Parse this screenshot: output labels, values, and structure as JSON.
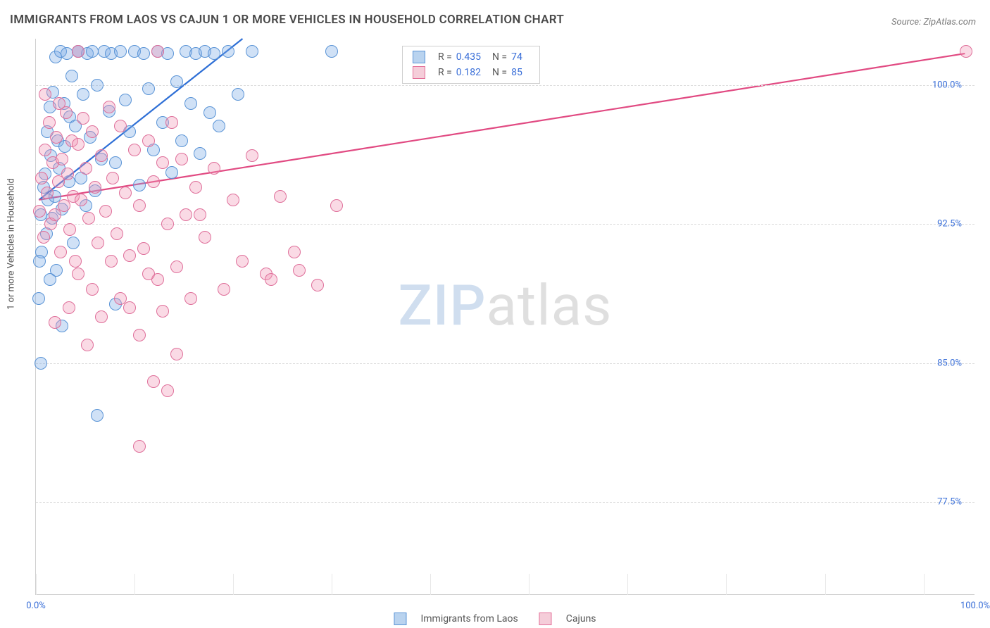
{
  "title": "IMMIGRANTS FROM LAOS VS CAJUN 1 OR MORE VEHICLES IN HOUSEHOLD CORRELATION CHART",
  "source_label": "Source:",
  "source_name": "ZipAtlas.com",
  "ylabel": "1 or more Vehicles in Household",
  "watermark_a": "ZIP",
  "watermark_b": "atlas",
  "chart": {
    "type": "scatter",
    "background_color": "#ffffff",
    "grid_color": "#dcdcdc",
    "axis_color": "#d0d0d0",
    "tick_label_color": "#3a6fd8",
    "tick_fontsize": 13,
    "xlim": [
      0,
      100
    ],
    "ylim": [
      72.5,
      102.5
    ],
    "yticks": [
      77.5,
      85.0,
      92.5,
      100.0
    ],
    "ytick_labels": [
      "77.5%",
      "85.0%",
      "92.5%",
      "100.0%"
    ],
    "xticks": [
      0,
      100
    ],
    "xtick_labels": [
      "0.0%",
      "100.0%"
    ],
    "x_minor_ticks": [
      0,
      10.5,
      21,
      31.5,
      42,
      52.5,
      63,
      73.5,
      84,
      94.5
    ],
    "point_radius": 9,
    "point_stroke_width": 1.2,
    "trend_line_width": 2.2
  },
  "series": [
    {
      "key": "laos",
      "label": "Immigrants from Laos",
      "fill": "rgba(120,170,230,0.35)",
      "stroke": "#5a94d6",
      "swatch_fill": "#b9d3ef",
      "swatch_stroke": "#5a94d6",
      "trend_color": "#2e6fd6",
      "R": "0.435",
      "N": "74",
      "trend": {
        "x1": 0.3,
        "y1": 93.8,
        "x2": 22.0,
        "y2": 102.5
      },
      "points": [
        [
          0.3,
          88.5
        ],
        [
          0.5,
          93.0
        ],
        [
          0.6,
          91.0
        ],
        [
          0.8,
          94.5
        ],
        [
          1.0,
          95.2
        ],
        [
          1.1,
          92.0
        ],
        [
          1.2,
          97.5
        ],
        [
          1.3,
          93.8
        ],
        [
          1.5,
          98.8
        ],
        [
          1.6,
          96.2
        ],
        [
          1.7,
          92.8
        ],
        [
          1.8,
          99.6
        ],
        [
          2.0,
          94.0
        ],
        [
          2.1,
          101.5
        ],
        [
          2.2,
          90.0
        ],
        [
          2.3,
          97.0
        ],
        [
          2.5,
          95.5
        ],
        [
          2.6,
          101.8
        ],
        [
          2.8,
          93.3
        ],
        [
          3.0,
          99.0
        ],
        [
          3.1,
          96.7
        ],
        [
          3.3,
          101.7
        ],
        [
          3.5,
          94.8
        ],
        [
          3.6,
          98.3
        ],
        [
          3.8,
          100.5
        ],
        [
          4.0,
          91.5
        ],
        [
          4.2,
          97.8
        ],
        [
          0.5,
          85.0
        ],
        [
          4.5,
          101.8
        ],
        [
          4.8,
          95.0
        ],
        [
          5.0,
          99.5
        ],
        [
          5.3,
          93.5
        ],
        [
          5.5,
          101.7
        ],
        [
          5.8,
          97.2
        ],
        [
          6.0,
          101.8
        ],
        [
          6.3,
          94.3
        ],
        [
          6.5,
          100.0
        ],
        [
          7.0,
          96.0
        ],
        [
          7.3,
          101.8
        ],
        [
          7.8,
          98.6
        ],
        [
          8.0,
          101.7
        ],
        [
          8.5,
          95.8
        ],
        [
          9.0,
          101.8
        ],
        [
          9.5,
          99.2
        ],
        [
          10.0,
          97.5
        ],
        [
          10.5,
          101.8
        ],
        [
          11.0,
          94.6
        ],
        [
          11.5,
          101.7
        ],
        [
          12.0,
          99.8
        ],
        [
          12.5,
          96.5
        ],
        [
          13.0,
          101.8
        ],
        [
          13.5,
          98.0
        ],
        [
          14.0,
          101.7
        ],
        [
          14.5,
          95.3
        ],
        [
          15.0,
          100.2
        ],
        [
          15.5,
          97.0
        ],
        [
          16.0,
          101.8
        ],
        [
          16.5,
          99.0
        ],
        [
          17.0,
          101.7
        ],
        [
          17.5,
          96.3
        ],
        [
          18.0,
          101.8
        ],
        [
          18.5,
          98.5
        ],
        [
          19.0,
          101.7
        ],
        [
          19.5,
          97.8
        ],
        [
          20.5,
          101.8
        ],
        [
          21.5,
          99.5
        ],
        [
          23.0,
          101.8
        ],
        [
          8.5,
          88.2
        ],
        [
          6.5,
          82.2
        ],
        [
          2.8,
          87.0
        ],
        [
          1.5,
          89.5
        ],
        [
          0.4,
          90.5
        ],
        [
          31.5,
          101.8
        ],
        [
          4.5,
          101.8
        ]
      ]
    },
    {
      "key": "cajuns",
      "label": "Cajuns",
      "fill": "rgba(240,150,180,0.35)",
      "stroke": "#df6f9a",
      "swatch_fill": "#f5cdd9",
      "swatch_stroke": "#e36f98",
      "trend_color": "#e14a82",
      "R": "0.182",
      "N": "85",
      "trend": {
        "x1": 0.3,
        "y1": 93.8,
        "x2": 99.0,
        "y2": 101.7
      },
      "points": [
        [
          0.4,
          93.2
        ],
        [
          0.6,
          95.0
        ],
        [
          0.8,
          91.8
        ],
        [
          1.0,
          96.5
        ],
        [
          1.2,
          94.2
        ],
        [
          1.4,
          98.0
        ],
        [
          1.6,
          92.5
        ],
        [
          1.8,
          95.8
        ],
        [
          2.0,
          93.0
        ],
        [
          2.2,
          97.2
        ],
        [
          2.4,
          94.8
        ],
        [
          2.6,
          91.0
        ],
        [
          2.8,
          96.0
        ],
        [
          3.0,
          93.5
        ],
        [
          3.2,
          98.5
        ],
        [
          3.4,
          95.2
        ],
        [
          3.6,
          92.2
        ],
        [
          3.8,
          97.0
        ],
        [
          4.0,
          94.0
        ],
        [
          4.2,
          90.5
        ],
        [
          4.5,
          96.8
        ],
        [
          4.8,
          93.8
        ],
        [
          5.0,
          98.2
        ],
        [
          5.3,
          95.5
        ],
        [
          5.6,
          92.8
        ],
        [
          6.0,
          97.5
        ],
        [
          6.3,
          94.5
        ],
        [
          6.6,
          91.5
        ],
        [
          7.0,
          96.2
        ],
        [
          7.4,
          93.2
        ],
        [
          7.8,
          98.8
        ],
        [
          8.2,
          95.0
        ],
        [
          8.6,
          92.0
        ],
        [
          9.0,
          97.8
        ],
        [
          9.5,
          94.2
        ],
        [
          10.0,
          90.8
        ],
        [
          10.5,
          96.5
        ],
        [
          11.0,
          93.5
        ],
        [
          11.5,
          91.2
        ],
        [
          12.0,
          97.0
        ],
        [
          12.5,
          94.8
        ],
        [
          13.0,
          89.5
        ],
        [
          13.5,
          95.8
        ],
        [
          14.0,
          92.5
        ],
        [
          14.5,
          98.0
        ],
        [
          15.0,
          90.2
        ],
        [
          15.5,
          96.0
        ],
        [
          16.0,
          93.0
        ],
        [
          17.0,
          94.5
        ],
        [
          18.0,
          91.8
        ],
        [
          19.0,
          95.5
        ],
        [
          20.0,
          89.0
        ],
        [
          21.0,
          93.8
        ],
        [
          22.0,
          90.5
        ],
        [
          23.0,
          96.2
        ],
        [
          24.5,
          89.8
        ],
        [
          26.0,
          94.0
        ],
        [
          28.0,
          90.0
        ],
        [
          30.0,
          89.2
        ],
        [
          32.0,
          93.5
        ],
        [
          7.0,
          87.5
        ],
        [
          9.0,
          88.5
        ],
        [
          11.0,
          86.5
        ],
        [
          13.5,
          87.8
        ],
        [
          15.0,
          85.5
        ],
        [
          5.5,
          86.0
        ],
        [
          3.5,
          88.0
        ],
        [
          2.0,
          87.2
        ],
        [
          12.5,
          84.0
        ],
        [
          14.0,
          83.5
        ],
        [
          11.0,
          80.5
        ],
        [
          17.5,
          93.0
        ],
        [
          4.5,
          89.8
        ],
        [
          6.0,
          89.0
        ],
        [
          8.0,
          90.5
        ],
        [
          10.0,
          88.0
        ],
        [
          12.0,
          89.8
        ],
        [
          16.5,
          88.5
        ],
        [
          25.0,
          89.5
        ],
        [
          27.5,
          91.0
        ],
        [
          1.0,
          99.5
        ],
        [
          2.5,
          99.0
        ],
        [
          13.0,
          101.8
        ],
        [
          99.0,
          101.8
        ],
        [
          4.5,
          101.8
        ]
      ]
    }
  ],
  "stat_box_labels": {
    "R": "R =",
    "N": "N ="
  },
  "bottom_legend_title": ""
}
